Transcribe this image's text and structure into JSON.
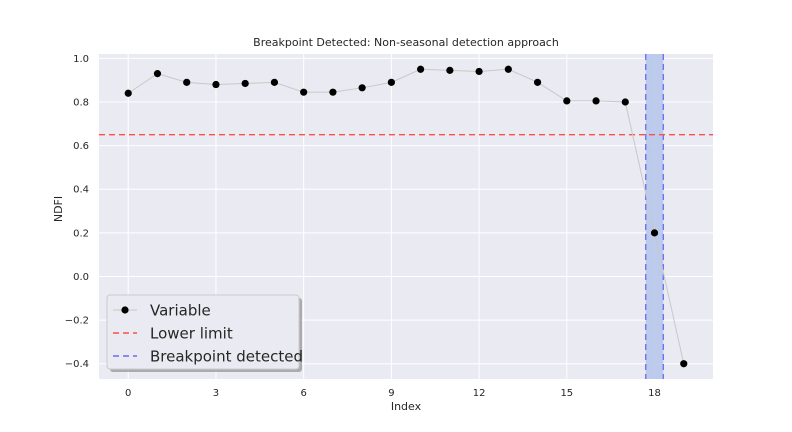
{
  "chart_data": {
    "type": "line",
    "title": "Breakpoint Detected: Non-seasonal detection approach",
    "xlabel": "Index",
    "ylabel": "NDFI",
    "xlim": [
      -1,
      20
    ],
    "ylim": [
      -0.47,
      1.02
    ],
    "xticks": [
      0,
      3,
      6,
      9,
      12,
      15,
      18
    ],
    "xtick_labels": [
      "0",
      "3",
      "6",
      "9",
      "12",
      "15",
      "18"
    ],
    "yticks": [
      1.0,
      0.8,
      0.6,
      0.4,
      0.2,
      0.0,
      -0.2,
      -0.4
    ],
    "ytick_labels": [
      "1.0",
      "0.8",
      "0.6",
      "0.4",
      "0.2",
      "0.0",
      "−0.2",
      "−0.4"
    ],
    "grid": true,
    "series": [
      {
        "name": "Variable",
        "x": [
          0,
          1,
          2,
          3,
          4,
          5,
          6,
          7,
          8,
          9,
          10,
          11,
          12,
          13,
          14,
          15,
          16,
          17,
          18,
          19
        ],
        "y": [
          0.84,
          0.93,
          0.89,
          0.88,
          0.885,
          0.89,
          0.845,
          0.845,
          0.865,
          0.89,
          0.95,
          0.945,
          0.94,
          0.95,
          0.89,
          0.805,
          0.805,
          0.8,
          0.2,
          -0.4
        ],
        "color": "#000000",
        "line_color": "#c8c8c8"
      }
    ],
    "lower_limit": {
      "name": "Lower limit",
      "value": 0.65,
      "color": "#ff4d4d"
    },
    "breakpoint": {
      "name": "Breakpoint detected",
      "x_start": 17.7,
      "x_end": 18.3,
      "color": "#6a6af2",
      "fill": "#b4c4ea"
    },
    "legend": {
      "placement": "lower-left",
      "entries": [
        "Variable",
        "Lower limit",
        "Breakpoint detected"
      ]
    },
    "colors": {
      "plot_background": "#eaeaf2",
      "grid": "#ffffff"
    }
  }
}
